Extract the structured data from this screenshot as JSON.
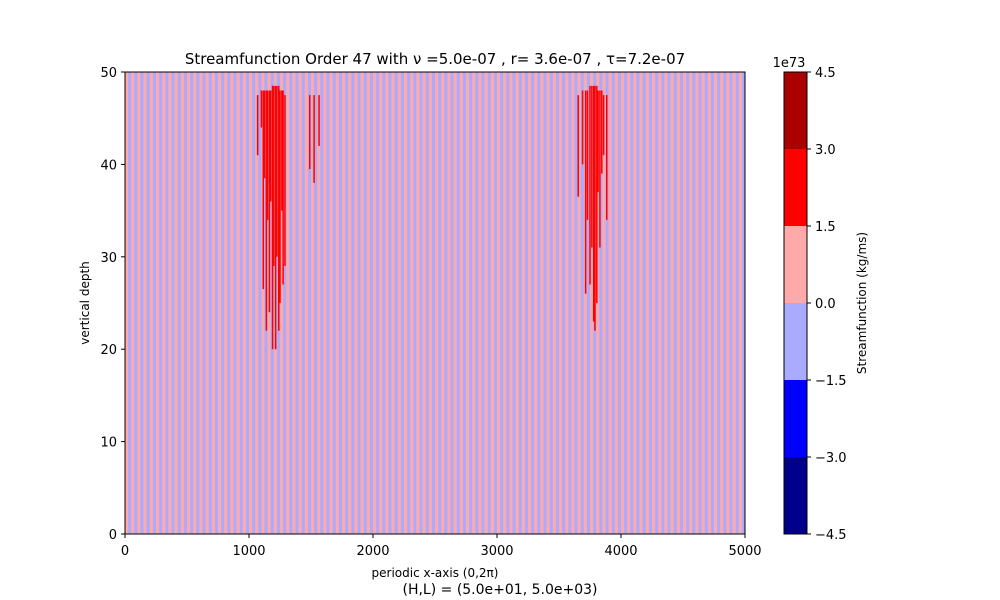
{
  "chart_data": {
    "type": "heatmap",
    "title": "Streamfunction Order 47 with ν =5.0e-07 , r= 3.6e-07 , τ=7.2e-07",
    "xlabel": "periodic x-axis (0,2π)",
    "ylabel": "vertical depth",
    "footer": "(H,L) = (5.0e+01, 5.0e+03)",
    "xlim": [
      0,
      5000
    ],
    "ylim": [
      0,
      50
    ],
    "x_ticks": [
      0,
      1000,
      2000,
      3000,
      4000,
      5000
    ],
    "y_ticks": [
      0,
      10,
      20,
      30,
      40,
      50
    ],
    "grid": false,
    "colorbar": {
      "label": "Streamfunction (kg/ms)",
      "offset_text": "1e73",
      "levels": [
        -4.5,
        -3.0,
        -1.5,
        0.0,
        1.5,
        3.0,
        4.5
      ],
      "tick_labels": [
        "−4.5",
        "−3.0",
        "−1.5",
        "0.0",
        "1.5",
        "3.0",
        "4.5"
      ],
      "colors": [
        "#00008b",
        "#0000ff",
        "#aaaaff",
        "#ffaaaa",
        "#ff0000",
        "#aa0000"
      ]
    },
    "stripe_count": 200,
    "background_pattern": [
      "#ffaaaa",
      "#aaaaff"
    ],
    "features": [
      {
        "name": "left plume",
        "color": "#ff0000",
        "lines": [
          [
            1070,
            41,
            47.5
          ],
          [
            1100,
            44,
            48
          ],
          [
            1115,
            26.5,
            48
          ],
          [
            1125,
            38.5,
            48
          ],
          [
            1140,
            22,
            48
          ],
          [
            1150,
            34,
            48
          ],
          [
            1165,
            24,
            48
          ],
          [
            1175,
            36,
            48
          ],
          [
            1190,
            20,
            48.5
          ],
          [
            1200,
            29,
            48.5
          ],
          [
            1215,
            20,
            48.5
          ],
          [
            1225,
            30,
            48.5
          ],
          [
            1240,
            22,
            48.5
          ],
          [
            1250,
            25,
            48
          ],
          [
            1265,
            35,
            48
          ],
          [
            1275,
            27,
            48
          ],
          [
            1290,
            29,
            47.5
          ],
          [
            1490,
            39.5,
            47.5
          ],
          [
            1525,
            38,
            47.5
          ],
          [
            1565,
            42,
            47.5
          ]
        ]
      },
      {
        "name": "right plume",
        "color": "#ff0000",
        "lines": [
          [
            3655,
            36.5,
            47.5
          ],
          [
            3690,
            40,
            48
          ],
          [
            3715,
            26,
            48
          ],
          [
            3730,
            34,
            48
          ],
          [
            3750,
            27,
            48.5
          ],
          [
            3765,
            31,
            48.5
          ],
          [
            3780,
            23,
            48.5
          ],
          [
            3790,
            22,
            48.5
          ],
          [
            3805,
            25,
            48.5
          ],
          [
            3815,
            37,
            48
          ],
          [
            3830,
            31,
            48
          ],
          [
            3845,
            39,
            48
          ],
          [
            3860,
            41,
            47.5
          ],
          [
            3885,
            34,
            47.5
          ]
        ]
      }
    ]
  }
}
